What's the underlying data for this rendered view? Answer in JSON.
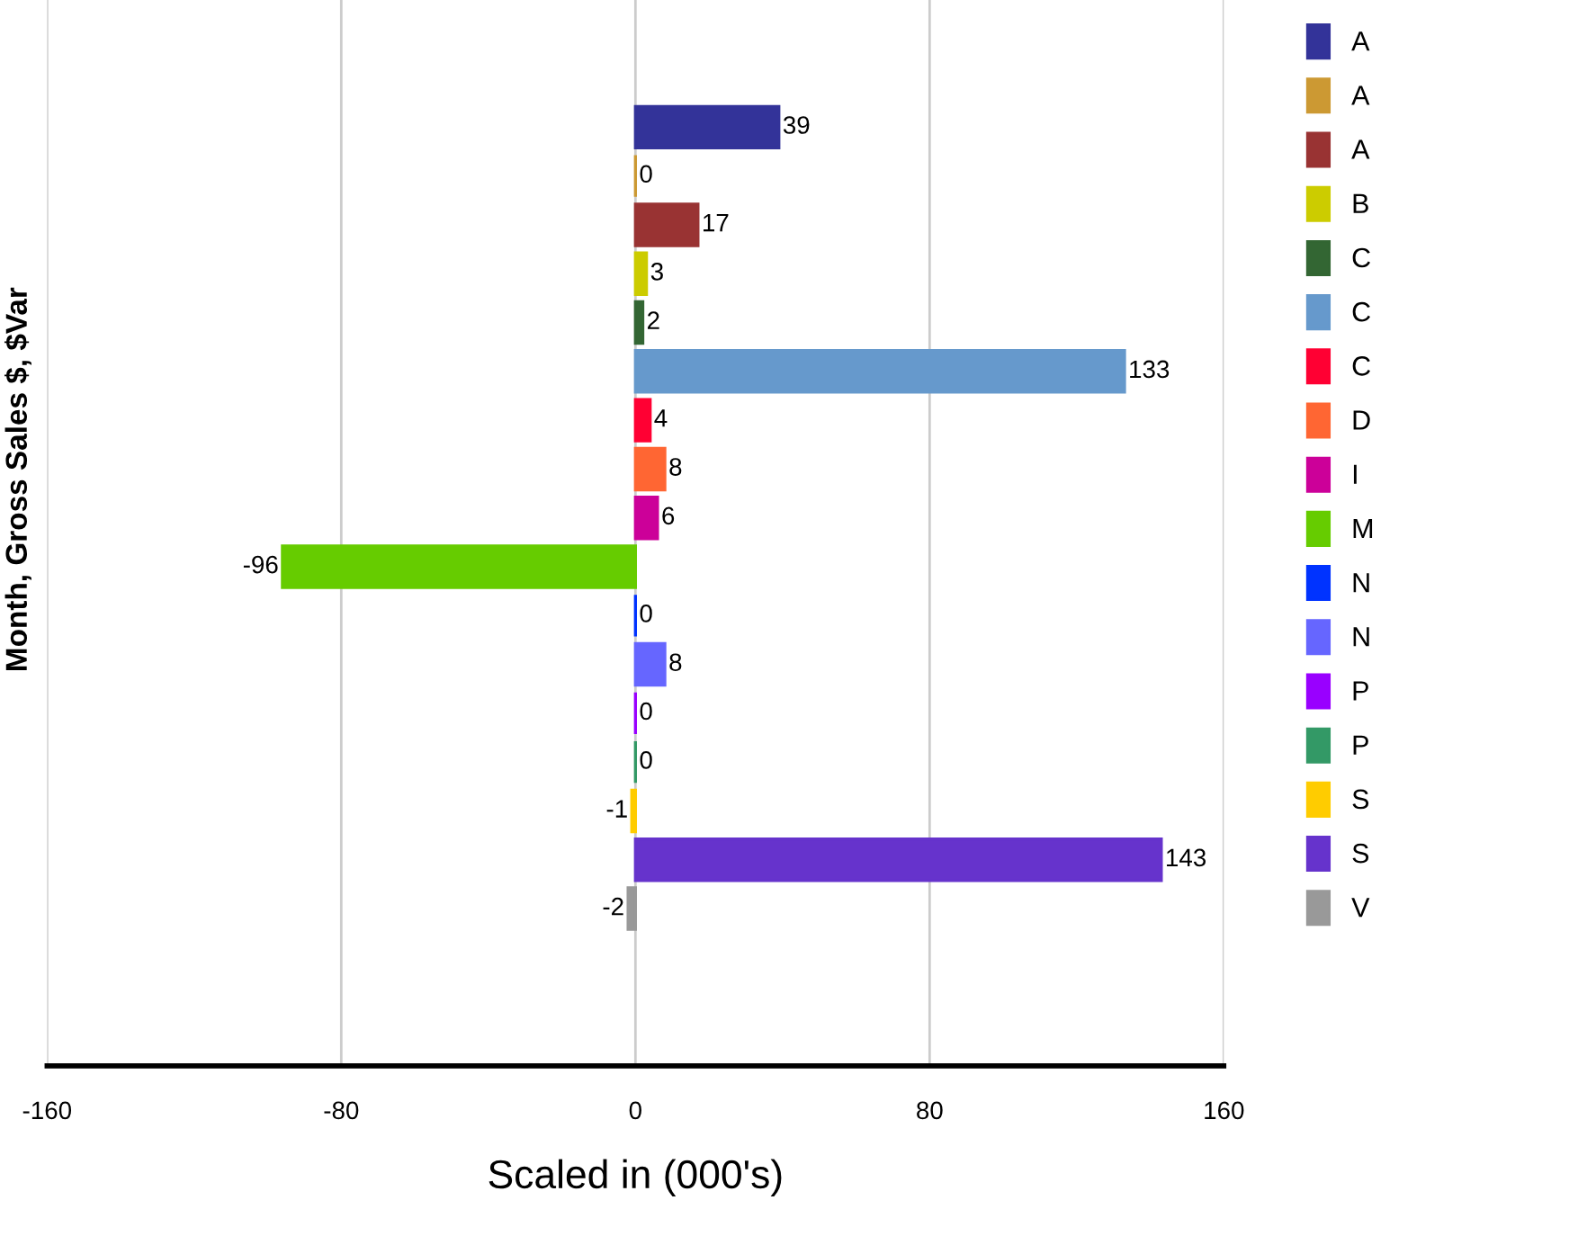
{
  "chart_data": {
    "type": "bar",
    "orientation": "horizontal",
    "categories": [
      null
    ],
    "ylabel": "Month, Gross Sales $, $Var",
    "xlabel": "Scaled in (000's)",
    "xlim": [
      -160,
      160
    ],
    "xticks": [
      -160,
      -80,
      0,
      80,
      160
    ],
    "grid": "x",
    "legend": "right",
    "data_labels": true,
    "series": [
      {
        "name": "A",
        "color": "#333399",
        "values": [
          39
        ]
      },
      {
        "name": "A",
        "color": "#cc9933",
        "values": [
          0
        ]
      },
      {
        "name": "A",
        "color": "#993333",
        "values": [
          17
        ]
      },
      {
        "name": "B",
        "color": "#cccc00",
        "values": [
          3
        ]
      },
      {
        "name": "C",
        "color": "#336633",
        "values": [
          2
        ]
      },
      {
        "name": "C",
        "color": "#6699cc",
        "values": [
          133
        ]
      },
      {
        "name": "C",
        "color": "#ff0033",
        "values": [
          4
        ]
      },
      {
        "name": "D",
        "color": "#ff6633",
        "values": [
          8
        ]
      },
      {
        "name": "I",
        "color": "#cc0099",
        "values": [
          6
        ]
      },
      {
        "name": "M",
        "color": "#66cc00",
        "values": [
          -96
        ]
      },
      {
        "name": "N",
        "color": "#0033ff",
        "values": [
          0
        ]
      },
      {
        "name": "N",
        "color": "#6666ff",
        "values": [
          8
        ]
      },
      {
        "name": "P",
        "color": "#9900ff",
        "values": [
          0
        ]
      },
      {
        "name": "P",
        "color": "#339966",
        "values": [
          0
        ]
      },
      {
        "name": "S",
        "color": "#ffcc00",
        "values": [
          -1
        ]
      },
      {
        "name": "S",
        "color": "#6633cc",
        "values": [
          143
        ]
      },
      {
        "name": "V",
        "color": "#999999",
        "values": [
          -2
        ]
      }
    ]
  }
}
